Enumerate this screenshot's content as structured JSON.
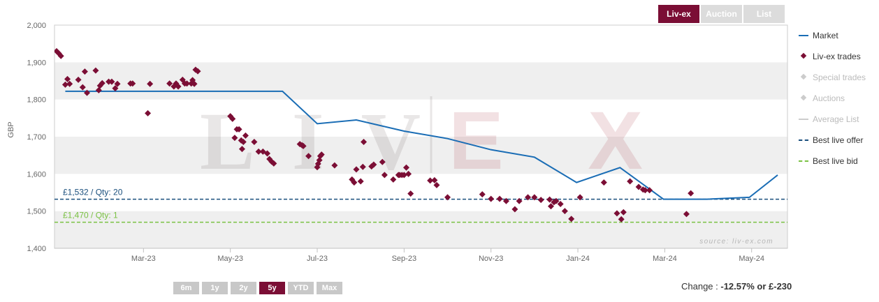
{
  "view_tabs": [
    {
      "label": "Liv-ex",
      "active": true
    },
    {
      "label": "Auction",
      "active": false
    },
    {
      "label": "List",
      "active": false
    }
  ],
  "range_tabs": [
    {
      "label": "6m",
      "active": false
    },
    {
      "label": "1y",
      "active": false
    },
    {
      "label": "2y",
      "active": false
    },
    {
      "label": "5y",
      "active": true
    },
    {
      "label": "YTD",
      "active": false
    },
    {
      "label": "Max",
      "active": false
    }
  ],
  "change": {
    "prefix": "Change : ",
    "value": "-12.57% or £-230"
  },
  "watermark": {
    "logo": "LIV|EX",
    "source": "source: liv-ex.com"
  },
  "legend": [
    {
      "label": "Market",
      "kind": "line",
      "color": "#1a6db5",
      "active": true
    },
    {
      "label": "Liv-ex trades",
      "kind": "diamond",
      "color": "#7b0e35",
      "active": true
    },
    {
      "label": "Special trades",
      "kind": "diamond",
      "color": "#cccccc",
      "active": false
    },
    {
      "label": "Auctions",
      "kind": "diamond",
      "color": "#cccccc",
      "active": false
    },
    {
      "label": "Average List",
      "kind": "line",
      "color": "#cccccc",
      "active": false
    },
    {
      "label": "Best live offer",
      "kind": "dash",
      "color": "#1a4f7d",
      "active": true
    },
    {
      "label": "Best live bid",
      "kind": "dash",
      "color": "#7ac143",
      "active": true
    }
  ],
  "chart_data": {
    "type": "line",
    "ylabel": "GBP",
    "ylim": [
      1400,
      2000
    ],
    "yticks": [
      1400,
      1500,
      1600,
      1700,
      1800,
      1900,
      2000
    ],
    "ytick_labels": [
      "1,400",
      "1,500",
      "1,600",
      "1,700",
      "1,800",
      "1,900",
      "2,000"
    ],
    "xlim": [
      0,
      16.6
    ],
    "xticks": [
      {
        "x": 2,
        "label": "Mar-23"
      },
      {
        "x": 4,
        "label": "May-23"
      },
      {
        "x": 6,
        "label": "Jul-23"
      },
      {
        "x": 8,
        "label": "Sep-23"
      },
      {
        "x": 10,
        "label": "Nov-23"
      },
      {
        "x": 12,
        "label": "Jan-24"
      },
      {
        "x": 14,
        "label": "Mar-24"
      },
      {
        "x": 16,
        "label": "May-24"
      }
    ],
    "series": [
      {
        "name": "Market",
        "color": "#1a6db5",
        "points": [
          [
            0.2,
            1822
          ],
          [
            4.2,
            1822
          ],
          [
            5.2,
            1822
          ],
          [
            6.0,
            1735
          ],
          [
            6.9,
            1745
          ],
          [
            8.0,
            1715
          ],
          [
            9.0,
            1695
          ],
          [
            10.0,
            1665
          ],
          [
            11.0,
            1645
          ],
          [
            11.97,
            1577
          ],
          [
            12.97,
            1617
          ],
          [
            13.97,
            1532
          ],
          [
            14.97,
            1532
          ],
          [
            15.95,
            1537
          ],
          [
            16.6,
            1597
          ]
        ]
      },
      {
        "name": "Liv-ex trades",
        "color": "#7b0e35",
        "points": [
          [
            0.0,
            1930
          ],
          [
            0.05,
            1924
          ],
          [
            0.1,
            1917
          ],
          [
            0.2,
            1840
          ],
          [
            0.25,
            1855
          ],
          [
            0.3,
            1842
          ],
          [
            0.5,
            1853
          ],
          [
            0.6,
            1833
          ],
          [
            0.65,
            1875
          ],
          [
            0.7,
            1818
          ],
          [
            0.9,
            1878
          ],
          [
            0.97,
            1825
          ],
          [
            1.0,
            1837
          ],
          [
            1.05,
            1844
          ],
          [
            1.2,
            1848
          ],
          [
            1.27,
            1848
          ],
          [
            1.35,
            1830
          ],
          [
            1.4,
            1842
          ],
          [
            1.7,
            1843
          ],
          [
            1.75,
            1843
          ],
          [
            2.1,
            1763
          ],
          [
            2.15,
            1842
          ],
          [
            2.6,
            1843
          ],
          [
            2.7,
            1835
          ],
          [
            2.75,
            1843
          ],
          [
            2.8,
            1835
          ],
          [
            2.9,
            1853
          ],
          [
            2.95,
            1843
          ],
          [
            3.0,
            1843
          ],
          [
            3.1,
            1843
          ],
          [
            3.13,
            1852
          ],
          [
            3.17,
            1842
          ],
          [
            3.2,
            1880
          ],
          [
            3.25,
            1876
          ],
          [
            4.0,
            1755
          ],
          [
            4.05,
            1748
          ],
          [
            4.1,
            1697
          ],
          [
            4.15,
            1720
          ],
          [
            4.2,
            1720
          ],
          [
            4.25,
            1690
          ],
          [
            4.27,
            1667
          ],
          [
            4.3,
            1686
          ],
          [
            4.35,
            1703
          ],
          [
            4.55,
            1686
          ],
          [
            4.65,
            1660
          ],
          [
            4.75,
            1660
          ],
          [
            4.85,
            1655
          ],
          [
            4.9,
            1640
          ],
          [
            4.95,
            1633
          ],
          [
            5.0,
            1628
          ],
          [
            5.6,
            1680
          ],
          [
            5.65,
            1677
          ],
          [
            5.68,
            1675
          ],
          [
            5.8,
            1648
          ],
          [
            6.0,
            1618
          ],
          [
            6.02,
            1627
          ],
          [
            6.05,
            1637
          ],
          [
            6.07,
            1648
          ],
          [
            6.1,
            1652
          ],
          [
            6.4,
            1623
          ],
          [
            6.8,
            1585
          ],
          [
            6.85,
            1577
          ],
          [
            6.9,
            1612
          ],
          [
            7.0,
            1580
          ],
          [
            7.05,
            1619
          ],
          [
            7.07,
            1686
          ],
          [
            7.25,
            1620
          ],
          [
            7.3,
            1625
          ],
          [
            7.5,
            1632
          ],
          [
            7.55,
            1597
          ],
          [
            7.75,
            1585
          ],
          [
            7.87,
            1597
          ],
          [
            7.9,
            1597
          ],
          [
            7.95,
            1597
          ],
          [
            8.0,
            1597
          ],
          [
            8.05,
            1617
          ],
          [
            8.1,
            1600
          ],
          [
            8.15,
            1547
          ],
          [
            8.6,
            1582
          ],
          [
            8.7,
            1583
          ],
          [
            8.75,
            1570
          ],
          [
            9.0,
            1537
          ],
          [
            9.8,
            1545
          ],
          [
            10.0,
            1533
          ],
          [
            10.2,
            1533
          ],
          [
            10.35,
            1527
          ],
          [
            10.55,
            1505
          ],
          [
            10.65,
            1527
          ],
          [
            10.85,
            1537
          ],
          [
            11.0,
            1537
          ],
          [
            11.15,
            1530
          ],
          [
            11.35,
            1531
          ],
          [
            11.38,
            1513
          ],
          [
            11.45,
            1524
          ],
          [
            11.5,
            1527
          ],
          [
            11.6,
            1519
          ],
          [
            11.7,
            1500
          ],
          [
            11.85,
            1479
          ],
          [
            12.05,
            1537
          ],
          [
            12.6,
            1577
          ],
          [
            12.9,
            1494
          ],
          [
            13.0,
            1478
          ],
          [
            13.05,
            1497
          ],
          [
            13.2,
            1580
          ],
          [
            13.4,
            1565
          ],
          [
            13.5,
            1558
          ],
          [
            13.55,
            1556
          ],
          [
            13.65,
            1556
          ],
          [
            14.5,
            1492
          ],
          [
            14.6,
            1548
          ]
        ]
      }
    ],
    "best_live_offer": {
      "value": 1532,
      "label": "£1,532 / Qty: 20",
      "color": "#1a4f7d"
    },
    "best_live_bid": {
      "value": 1470,
      "label": "£1,470 / Qty: 1",
      "color": "#7ac143"
    }
  }
}
